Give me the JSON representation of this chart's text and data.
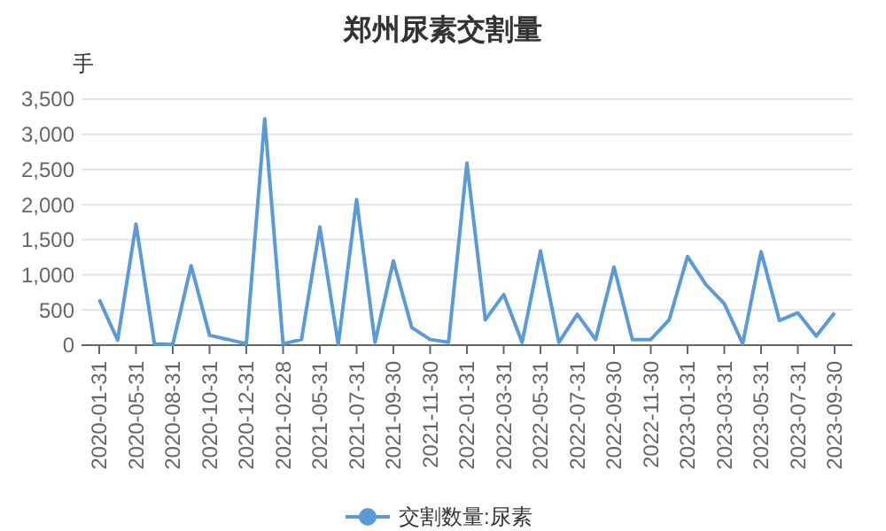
{
  "chart_data": {
    "type": "line",
    "title": "郑州尿素交割量",
    "ylabel": "手",
    "categories": [
      "2020-01-31",
      null,
      "2020-05-31",
      null,
      "2020-08-31",
      null,
      "2020-10-31",
      null,
      "2020-12-31",
      null,
      "2021-02-28",
      null,
      "2021-05-31",
      null,
      "2021-07-31",
      null,
      "2021-09-30",
      null,
      "2021-11-30",
      null,
      "2022-01-31",
      null,
      "2022-03-31",
      null,
      "2022-05-31",
      null,
      "2022-07-31",
      null,
      "2022-09-30",
      null,
      "2022-11-30",
      null,
      "2023-01-31",
      null,
      "2023-03-31",
      null,
      "2023-05-31",
      null,
      "2023-07-31",
      null,
      "2023-09-30"
    ],
    "series": [
      {
        "name": "交割数量:尿素",
        "color": "#5b9bd5",
        "values": [
          650,
          70,
          1720,
          20,
          10,
          1130,
          140,
          80,
          20,
          3220,
          20,
          80,
          1680,
          10,
          2070,
          40,
          1200,
          250,
          80,
          40,
          2590,
          360,
          720,
          40,
          1340,
          40,
          440,
          80,
          1110,
          80,
          80,
          360,
          1260,
          860,
          590,
          20,
          1330,
          350,
          460,
          130,
          460
        ]
      }
    ],
    "ylim": [
      0,
      3500
    ],
    "yticks": [
      0,
      500,
      {
        "value": 1000,
        "label": "1,000"
      },
      {
        "value": 1500,
        "label": "1,500"
      },
      {
        "value": 2000,
        "label": "2,000"
      },
      {
        "value": 2500,
        "label": "2,500"
      },
      {
        "value": 3000,
        "label": "3,000"
      },
      {
        "value": 3500,
        "label": "3,500"
      }
    ],
    "grid": "y",
    "legend": "bottom",
    "marker": "none",
    "line_style": "solid"
  }
}
